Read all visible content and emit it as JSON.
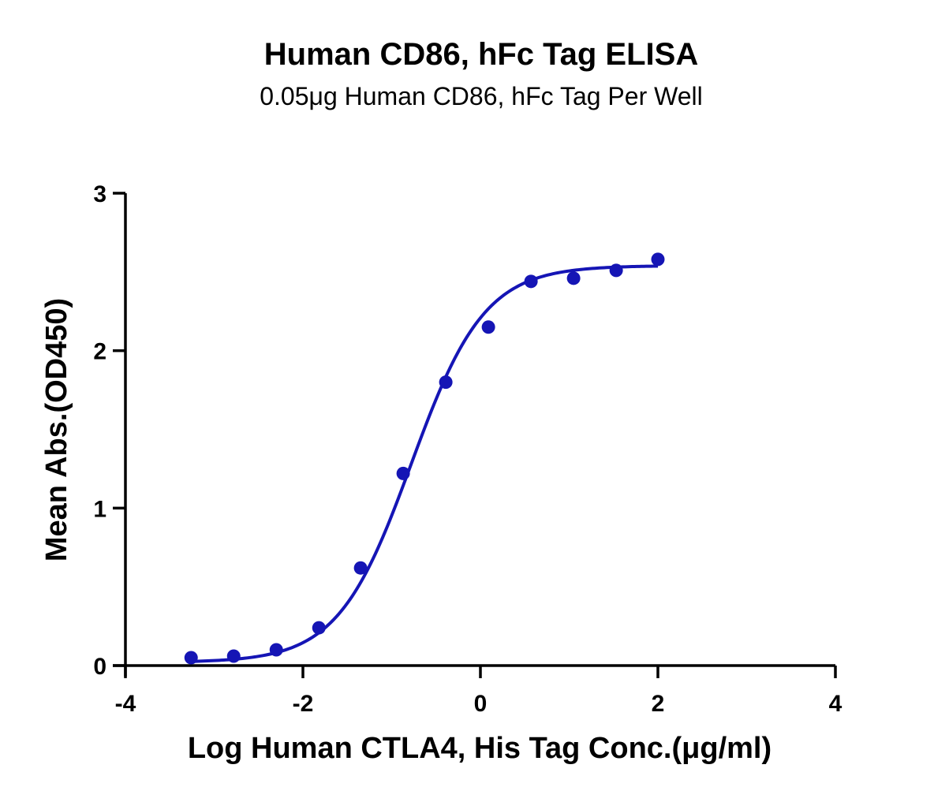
{
  "chart_data": {
    "type": "scatter",
    "title": "Human CD86, hFc Tag ELISA",
    "subtitle": "0.05μg Human CD86, hFc Tag Per Well",
    "xlabel": "Log Human CTLA4, His Tag Conc.(μg/ml)",
    "ylabel": "Mean Abs.(OD450)",
    "xlim": [
      -4,
      4
    ],
    "ylim": [
      0,
      3
    ],
    "xticks": [
      -4,
      -2,
      0,
      2,
      4
    ],
    "yticks": [
      0,
      1,
      2,
      3
    ],
    "grid": false,
    "legend": "none",
    "color": "#1515b5",
    "series": [
      {
        "x": [
          -3.26,
          -2.78,
          -2.3,
          -1.82,
          -1.35,
          -0.87,
          -0.39,
          0.09,
          0.57,
          1.05,
          1.53,
          2.0
        ],
        "y": [
          0.05,
          0.06,
          0.1,
          0.24,
          0.62,
          1.22,
          1.8,
          2.15,
          2.44,
          2.46,
          2.51,
          2.58
        ]
      }
    ],
    "fit_curve": {
      "model": "4PL",
      "bottom": 0.02,
      "top": 2.54,
      "log_ec50": -0.78,
      "hill_slope": 1.05,
      "x_range": [
        -3.26,
        2.0
      ]
    }
  }
}
